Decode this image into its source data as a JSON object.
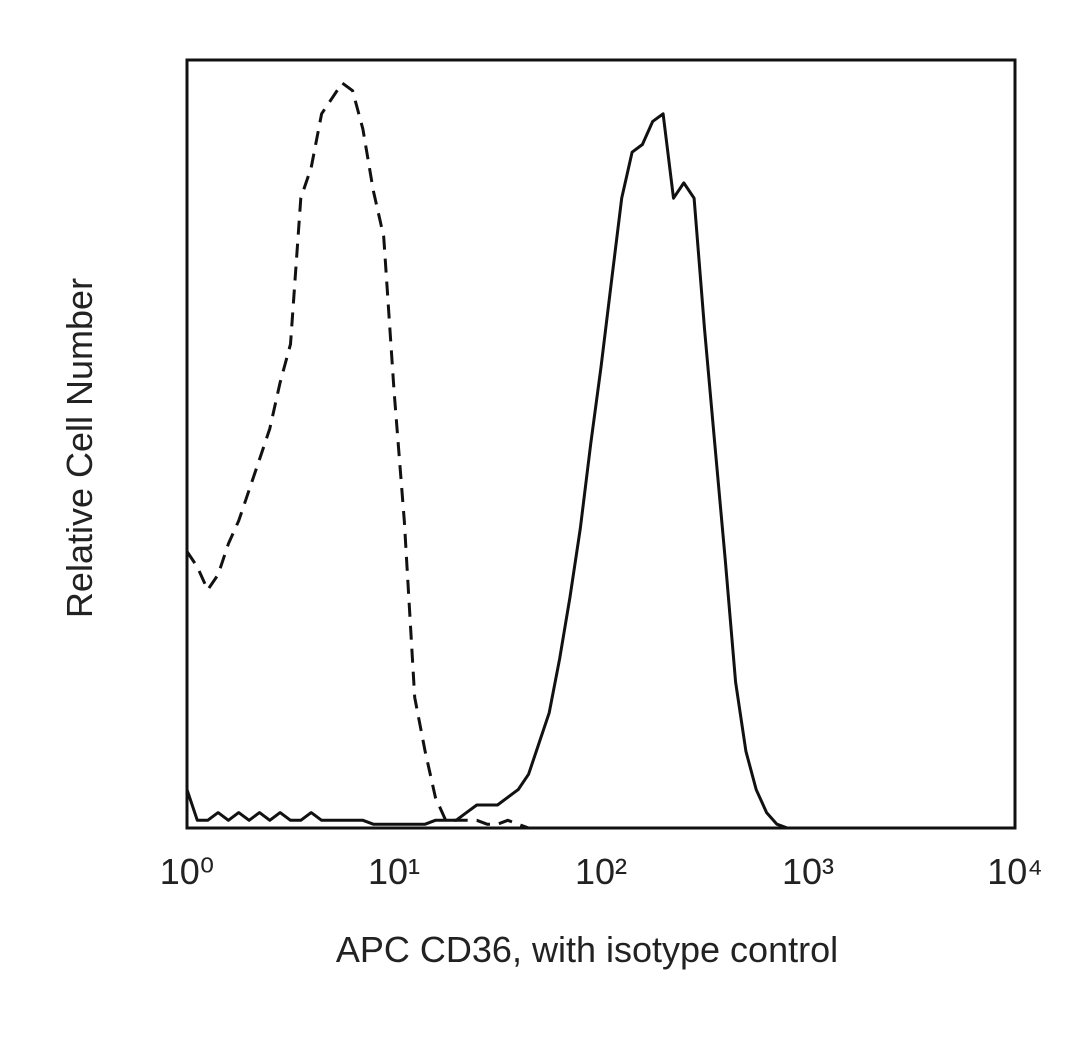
{
  "chart_data": {
    "type": "line",
    "x_label": "APC CD36, with isotype control",
    "y_label": "Relative Cell Number",
    "xscale": "log",
    "xlim": [
      1,
      10000
    ],
    "ylim": [
      0,
      100
    ],
    "xticks": [
      {
        "value": 1,
        "label": "10⁰"
      },
      {
        "value": 10,
        "label": "10¹"
      },
      {
        "value": 100,
        "label": "10²"
      },
      {
        "value": 1000,
        "label": "10³"
      },
      {
        "value": 10000,
        "label": "10⁴"
      }
    ],
    "x": [
      1,
      1.122,
      1.259,
      1.413,
      1.585,
      1.778,
      1.995,
      2.239,
      2.512,
      2.818,
      3.162,
      3.548,
      3.981,
      4.467,
      5.012,
      5.623,
      6.31,
      7.079,
      7.943,
      8.913,
      10,
      11.22,
      12.59,
      14.13,
      15.85,
      17.78,
      19.95,
      22.39,
      25.12,
      28.18,
      31.62,
      35.48,
      39.81,
      44.67,
      50.12,
      56.23,
      63.1,
      70.79,
      79.43,
      89.13,
      100,
      112.2,
      125.9,
      141.3,
      158.5,
      177.8,
      199.5,
      223.9,
      251.2,
      281.8,
      316.2,
      354.8,
      398.1,
      446.7,
      501.2,
      562.3,
      631,
      707.9,
      794.3,
      891.3,
      1000
    ],
    "series": [
      {
        "color": "#111111",
        "linestyle": "dashed",
        "values": [
          36,
          34,
          31,
          33,
          37,
          40,
          44,
          48,
          52,
          58,
          63,
          82,
          86,
          93,
          95,
          97,
          96,
          91,
          83,
          77,
          57,
          40,
          17,
          10,
          4,
          1,
          1,
          1,
          1,
          0.5,
          0.5,
          1,
          0.5,
          0,
          0,
          0,
          0,
          0,
          0,
          0,
          0,
          0,
          0,
          0,
          0,
          0,
          0,
          0,
          0,
          0,
          0,
          0,
          0,
          0,
          0,
          0,
          0,
          0,
          0,
          0,
          0
        ]
      },
      {
        "color": "#111111",
        "linestyle": "solid",
        "values": [
          5,
          1,
          1,
          2,
          1,
          2,
          1,
          2,
          1,
          2,
          1,
          1,
          2,
          1,
          1,
          1,
          1,
          1,
          0.5,
          0.5,
          0.5,
          0.5,
          0.5,
          0.5,
          1,
          1,
          1,
          2,
          3,
          3,
          3,
          4,
          5,
          7,
          11,
          15,
          22,
          30,
          39,
          50,
          60,
          71,
          82,
          88,
          89,
          92,
          93,
          82,
          84,
          82,
          65,
          50,
          35,
          19,
          10,
          5,
          2,
          0.5,
          0,
          0,
          0
        ]
      }
    ]
  }
}
